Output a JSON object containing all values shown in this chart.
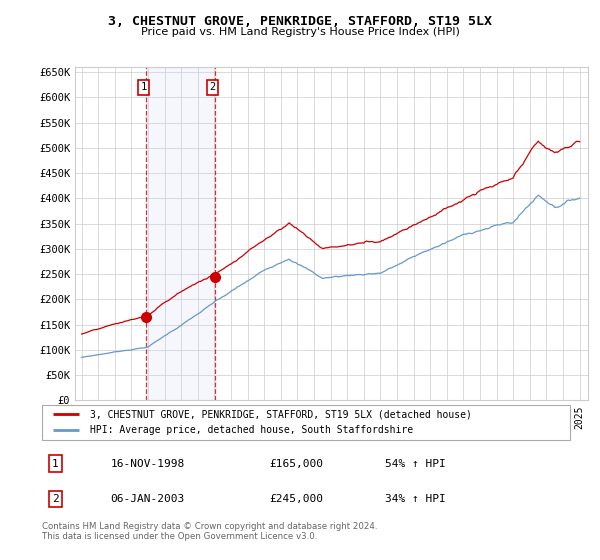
{
  "title": "3, CHESTNUT GROVE, PENKRIDGE, STAFFORD, ST19 5LX",
  "subtitle": "Price paid vs. HM Land Registry's House Price Index (HPI)",
  "footer": "Contains HM Land Registry data © Crown copyright and database right 2024.\nThis data is licensed under the Open Government Licence v3.0.",
  "legend_line1": "3, CHESTNUT GROVE, PENKRIDGE, STAFFORD, ST19 5LX (detached house)",
  "legend_line2": "HPI: Average price, detached house, South Staffordshire",
  "transaction1_label": "1",
  "transaction1_date": "16-NOV-1998",
  "transaction1_price": "£165,000",
  "transaction1_hpi": "54% ↑ HPI",
  "transaction2_label": "2",
  "transaction2_date": "06-JAN-2003",
  "transaction2_price": "£245,000",
  "transaction2_hpi": "34% ↑ HPI",
  "transaction1_year": 1998.88,
  "transaction1_value": 165000,
  "transaction2_year": 2003.02,
  "transaction2_value": 245000,
  "red_color": "#cc0000",
  "blue_color": "#6699cc",
  "shade_color": "#ddeeff",
  "grid_color": "#cccccc",
  "bg_color": "#ffffff",
  "ylim": [
    0,
    660000
  ],
  "yticks": [
    0,
    50000,
    100000,
    150000,
    200000,
    250000,
    300000,
    350000,
    400000,
    450000,
    500000,
    550000,
    600000,
    650000
  ],
  "ytick_labels": [
    "£0",
    "£50K",
    "£100K",
    "£150K",
    "£200K",
    "£250K",
    "£300K",
    "£350K",
    "£400K",
    "£450K",
    "£500K",
    "£550K",
    "£600K",
    "£650K"
  ]
}
